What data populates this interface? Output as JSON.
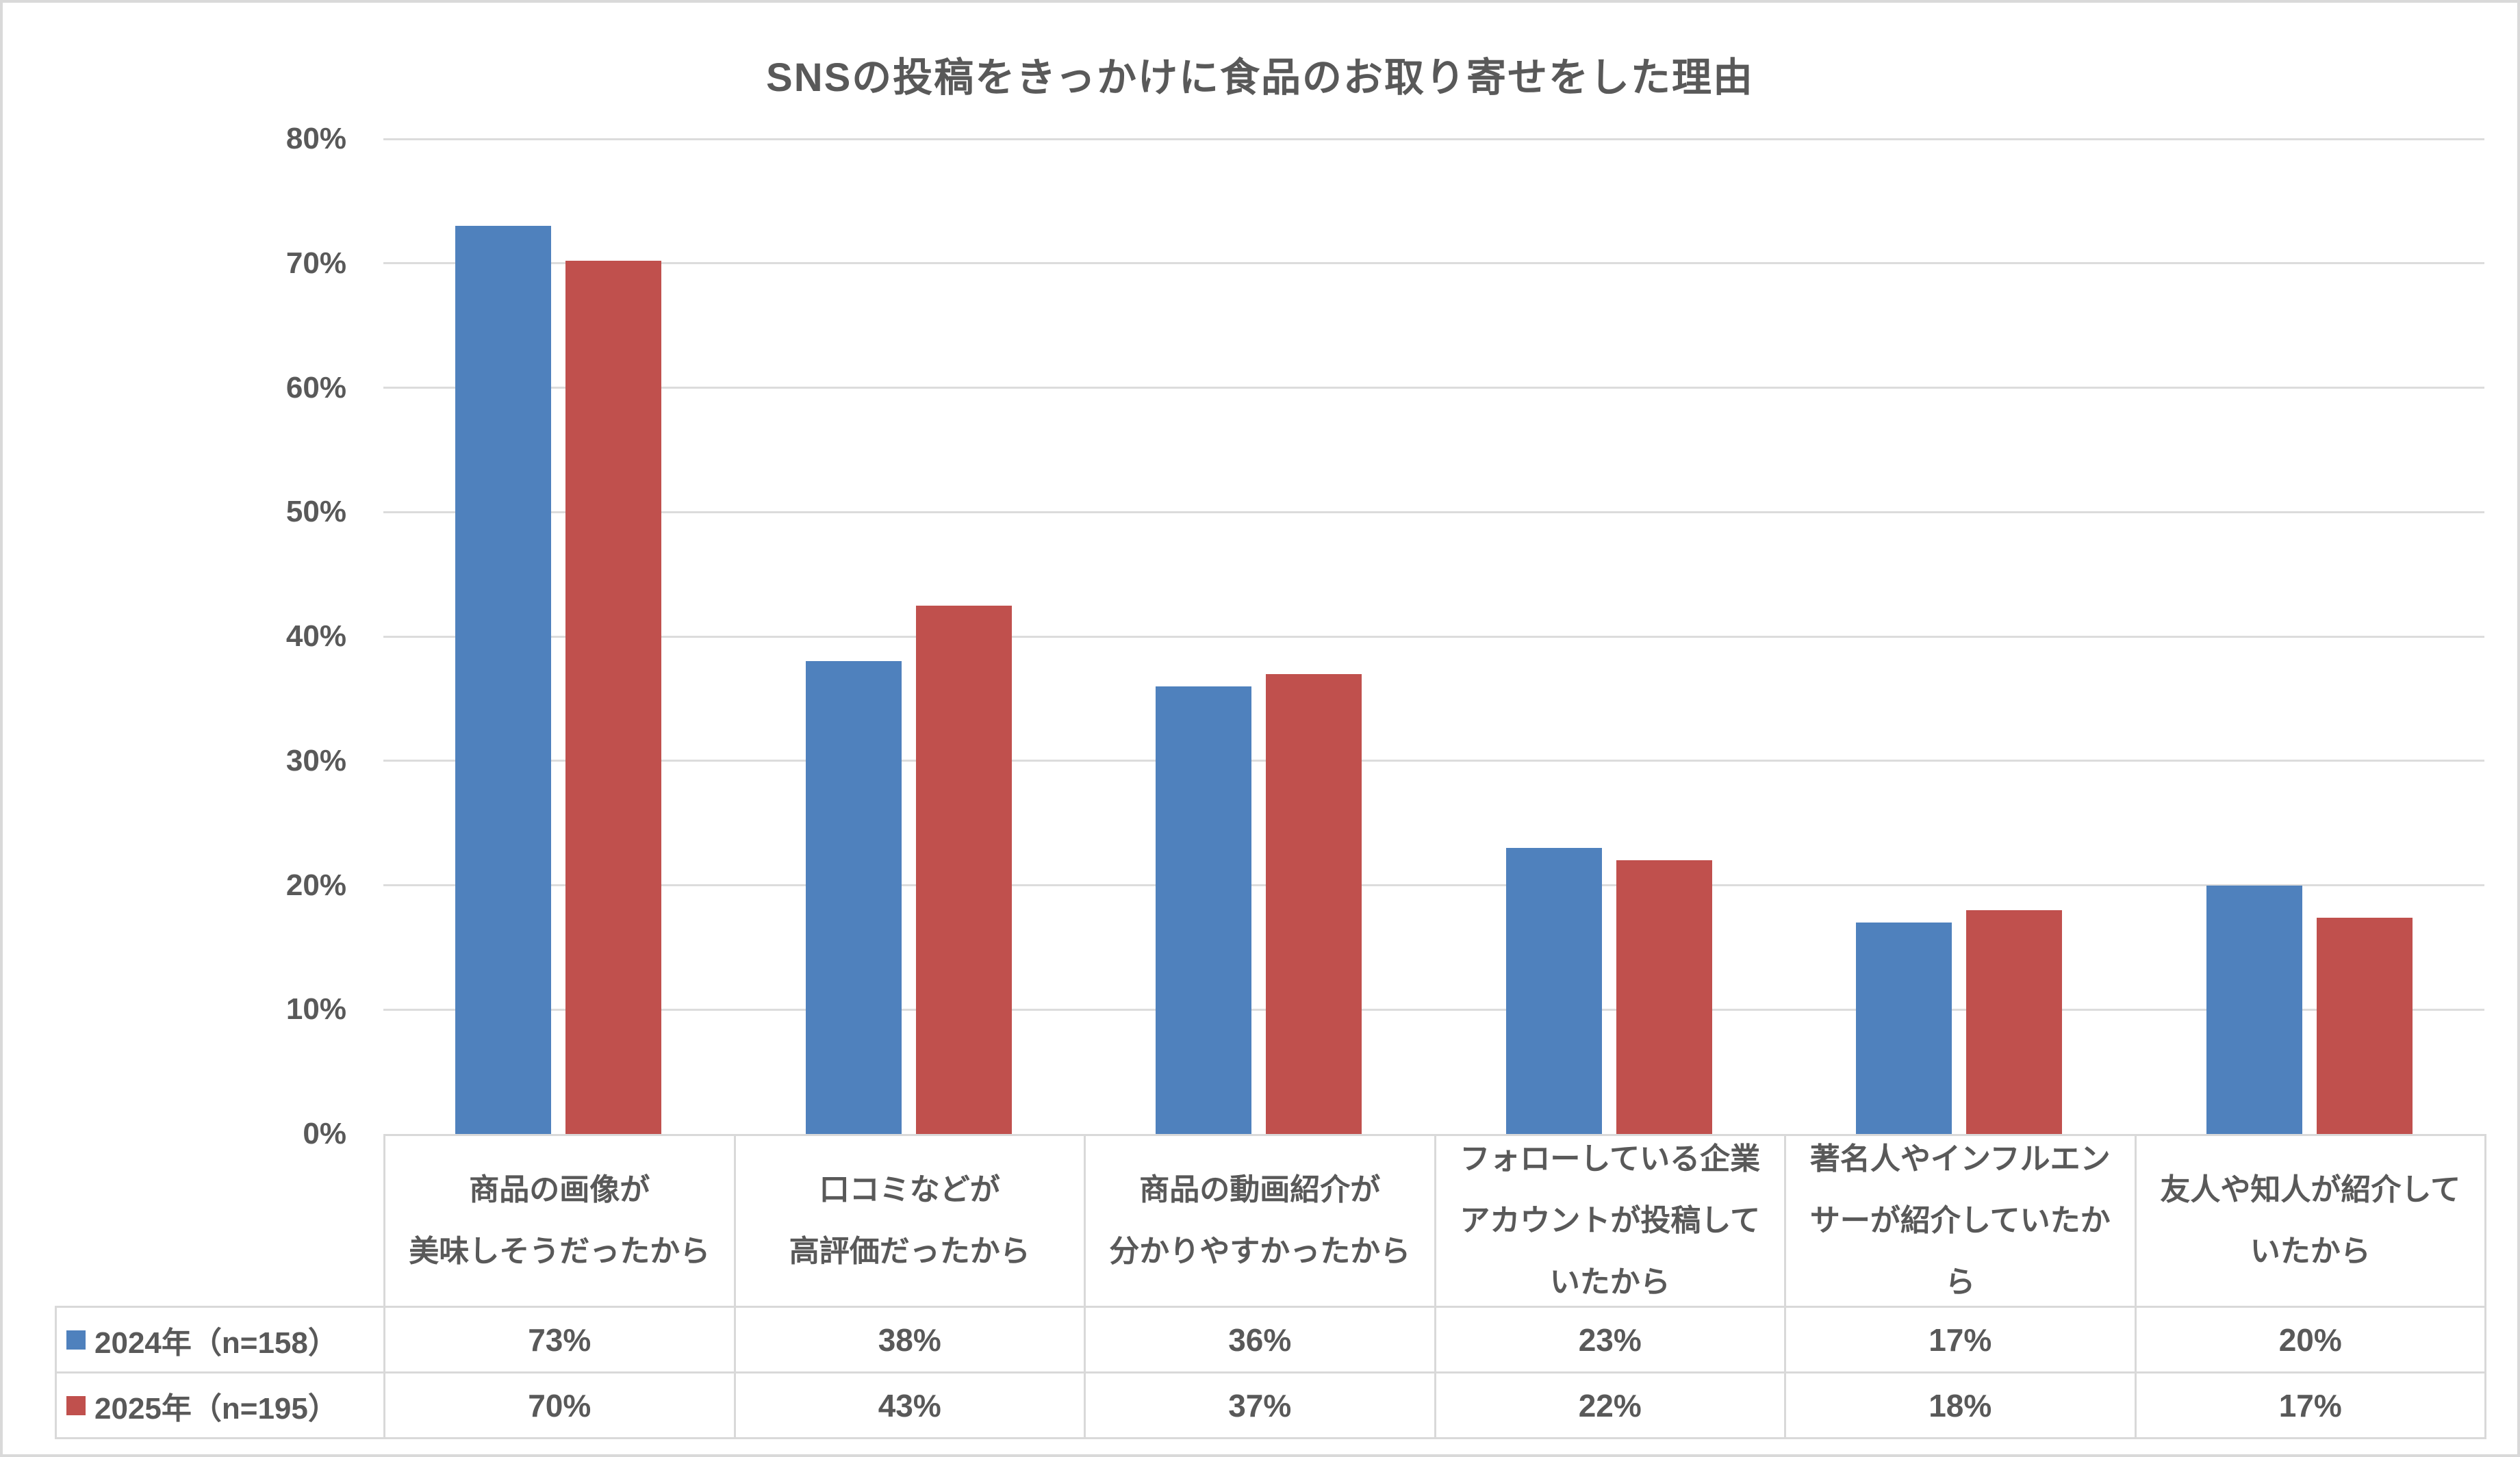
{
  "title": "SNSの投稿をきっかけに食品のお取り寄せをした理由",
  "chart_data": {
    "type": "bar",
    "title": "SNSの投稿をきっかけに食品のお取り寄せをした理由",
    "categories": [
      [
        "商品の画像が",
        "美味しそうだったから"
      ],
      [
        "口コミなどが",
        "高評価だったから"
      ],
      [
        "商品の動画紹介が",
        "分かりやすかったから"
      ],
      [
        "フォローしている企業",
        "アカウントが投稿して",
        "いたから"
      ],
      [
        "著名人やインフルエン",
        "サーが紹介していたか",
        "ら"
      ],
      [
        "友人や知人が紹介して",
        "いたから"
      ]
    ],
    "series": [
      {
        "name": "2024年（n=158）",
        "color": "#4F81BD",
        "values": [
          73,
          38,
          36,
          23,
          17,
          20
        ],
        "bar_heights_percent": [
          73,
          38,
          36,
          23,
          17,
          20
        ]
      },
      {
        "name": "2025年（n=195）",
        "color": "#C0504D",
        "values": [
          70,
          43,
          37,
          22,
          18,
          17
        ],
        "bar_heights_percent": [
          70.2,
          42.5,
          37,
          22,
          18,
          17.4
        ]
      }
    ],
    "value_suffix": "%",
    "y_axis": {
      "min": 0,
      "max": 80,
      "step": 10,
      "tick_labels": [
        "0%",
        "10%",
        "20%",
        "30%",
        "40%",
        "50%",
        "60%",
        "70%",
        "80%"
      ]
    },
    "grid": true,
    "legend_position": "data-table-left",
    "gridline_color": "#DCDCDC",
    "table_border_color": "#D9D9D9",
    "text_color": "#595959",
    "background_color": "#FFFFFF"
  }
}
